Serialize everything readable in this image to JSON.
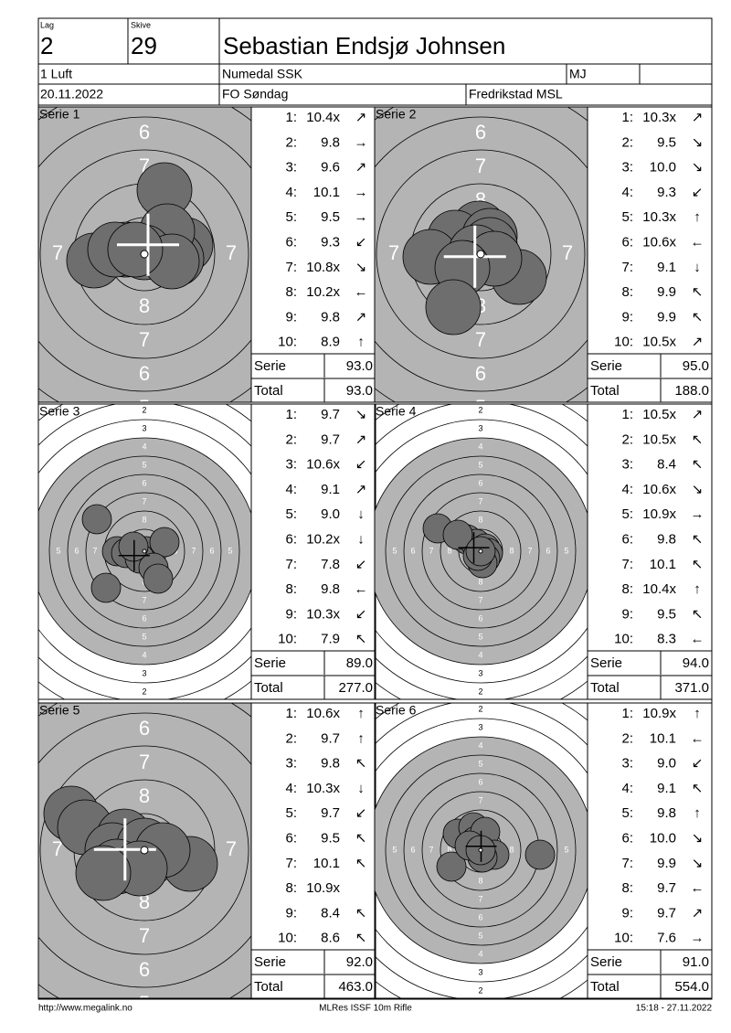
{
  "header": {
    "lag_label": "Lag",
    "lag": "2",
    "skive_label": "Skive",
    "skive": "29",
    "name": "Sebastian Endsjø Johnsen",
    "class": "1 Luft",
    "club": "Numedal SSK",
    "code": "MJ",
    "date": "20.11.2022",
    "event": "FO Søndag",
    "venue": "Fredrikstad MSL"
  },
  "ring_labels": [
    "2",
    "3",
    "4",
    "5",
    "6",
    "7",
    "8"
  ],
  "series": [
    {
      "title": "Serie 1",
      "serie_label": "Serie",
      "serie": "93.0",
      "total_label": "Total",
      "total": "93.0",
      "shots": [
        {
          "n": "1:",
          "score": "10.4x",
          "arrow": "↗"
        },
        {
          "n": "2:",
          "score": "9.8",
          "arrow": "→"
        },
        {
          "n": "3:",
          "score": "9.6",
          "arrow": "↗"
        },
        {
          "n": "4:",
          "score": "10.1",
          "arrow": "→"
        },
        {
          "n": "5:",
          "score": "9.5",
          "arrow": "→"
        },
        {
          "n": "6:",
          "score": "9.3",
          "arrow": "↙"
        },
        {
          "n": "7:",
          "score": "10.8x",
          "arrow": "↘"
        },
        {
          "n": "8:",
          "score": "10.2x",
          "arrow": "←"
        },
        {
          "n": "9:",
          "score": "9.8",
          "arrow": "↗"
        },
        {
          "n": "10:",
          "score": "8.9",
          "arrow": "↑"
        }
      ]
    },
    {
      "title": "Serie 2",
      "serie_label": "Serie",
      "serie": "95.0",
      "total_label": "Total",
      "total": "188.0",
      "shots": [
        {
          "n": "1:",
          "score": "10.3x",
          "arrow": "↗"
        },
        {
          "n": "2:",
          "score": "9.5",
          "arrow": "↘"
        },
        {
          "n": "3:",
          "score": "10.0",
          "arrow": "↘"
        },
        {
          "n": "4:",
          "score": "9.3",
          "arrow": "↙"
        },
        {
          "n": "5:",
          "score": "10.3x",
          "arrow": "↑"
        },
        {
          "n": "6:",
          "score": "10.6x",
          "arrow": "←"
        },
        {
          "n": "7:",
          "score": "9.1",
          "arrow": "↓"
        },
        {
          "n": "8:",
          "score": "9.9",
          "arrow": "↖"
        },
        {
          "n": "9:",
          "score": "9.9",
          "arrow": "↖"
        },
        {
          "n": "10:",
          "score": "10.5x",
          "arrow": "↗"
        }
      ]
    },
    {
      "title": "Serie 3",
      "serie_label": "Serie",
      "serie": "89.0",
      "total_label": "Total",
      "total": "277.0",
      "shots": [
        {
          "n": "1:",
          "score": "9.7",
          "arrow": "↘"
        },
        {
          "n": "2:",
          "score": "9.7",
          "arrow": "↗"
        },
        {
          "n": "3:",
          "score": "10.6x",
          "arrow": "↙"
        },
        {
          "n": "4:",
          "score": "9.1",
          "arrow": "↗"
        },
        {
          "n": "5:",
          "score": "9.0",
          "arrow": "↓"
        },
        {
          "n": "6:",
          "score": "10.2x",
          "arrow": "↓"
        },
        {
          "n": "7:",
          "score": "7.8",
          "arrow": "↙"
        },
        {
          "n": "8:",
          "score": "9.8",
          "arrow": "←"
        },
        {
          "n": "9:",
          "score": "10.3x",
          "arrow": "↙"
        },
        {
          "n": "10:",
          "score": "7.9",
          "arrow": "↖"
        }
      ]
    },
    {
      "title": "Serie 4",
      "serie_label": "Serie",
      "serie": "94.0",
      "total_label": "Total",
      "total": "371.0",
      "shots": [
        {
          "n": "1:",
          "score": "10.5x",
          "arrow": "↗"
        },
        {
          "n": "2:",
          "score": "10.5x",
          "arrow": "↖"
        },
        {
          "n": "3:",
          "score": "8.4",
          "arrow": "↖"
        },
        {
          "n": "4:",
          "score": "10.6x",
          "arrow": "↘"
        },
        {
          "n": "5:",
          "score": "10.9x",
          "arrow": "→"
        },
        {
          "n": "6:",
          "score": "9.8",
          "arrow": "↖"
        },
        {
          "n": "7:",
          "score": "10.1",
          "arrow": "↖"
        },
        {
          "n": "8:",
          "score": "10.4x",
          "arrow": "↑"
        },
        {
          "n": "9:",
          "score": "9.5",
          "arrow": "↖"
        },
        {
          "n": "10:",
          "score": "8.3",
          "arrow": "←"
        }
      ]
    },
    {
      "title": "Serie 5",
      "serie_label": "Serie",
      "serie": "92.0",
      "total_label": "Total",
      "total": "463.0",
      "shots": [
        {
          "n": "1:",
          "score": "10.6x",
          "arrow": "↑"
        },
        {
          "n": "2:",
          "score": "9.7",
          "arrow": "↑"
        },
        {
          "n": "3:",
          "score": "9.8",
          "arrow": "↖"
        },
        {
          "n": "4:",
          "score": "10.3x",
          "arrow": "↓"
        },
        {
          "n": "5:",
          "score": "9.7",
          "arrow": "↙"
        },
        {
          "n": "6:",
          "score": "9.5",
          "arrow": "↖"
        },
        {
          "n": "7:",
          "score": "10.1",
          "arrow": "↖"
        },
        {
          "n": "8:",
          "score": "10.9x"
        },
        {
          "n": "9:",
          "score": "8.4",
          "arrow": "↖"
        },
        {
          "n": "10:",
          "score": "8.6",
          "arrow": "↖"
        }
      ]
    },
    {
      "title": "Serie 6",
      "serie_label": "Serie",
      "serie": "91.0",
      "total_label": "Total",
      "total": "554.0",
      "shots": [
        {
          "n": "1:",
          "score": "10.9x",
          "arrow": "↑"
        },
        {
          "n": "2:",
          "score": "10.1",
          "arrow": "←"
        },
        {
          "n": "3:",
          "score": "9.0",
          "arrow": "↙"
        },
        {
          "n": "4:",
          "score": "9.1",
          "arrow": "↖"
        },
        {
          "n": "5:",
          "score": "9.8",
          "arrow": "↑"
        },
        {
          "n": "6:",
          "score": "10.0",
          "arrow": "↘"
        },
        {
          "n": "7:",
          "score": "9.9",
          "arrow": "↘"
        },
        {
          "n": "8:",
          "score": "9.7",
          "arrow": "←"
        },
        {
          "n": "9:",
          "score": "9.7",
          "arrow": "↗"
        },
        {
          "n": "10:",
          "score": "7.6",
          "arrow": "→"
        }
      ]
    }
  ],
  "footer": {
    "url": "http://www.megalink.no",
    "program": "MLRes ISSF 10m Rifle",
    "timestamp": "15:18 - 27.11.2022"
  }
}
